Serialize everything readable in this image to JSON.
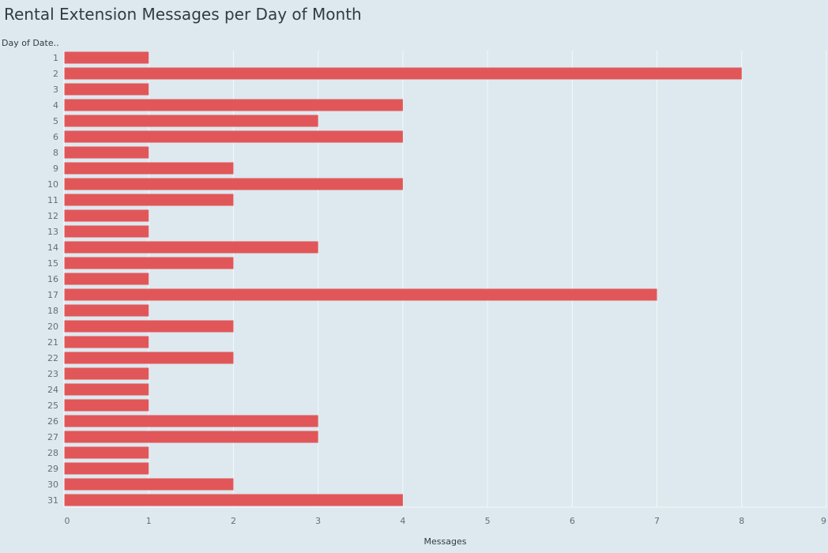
{
  "chart_data": {
    "type": "bar",
    "orientation": "horizontal",
    "title": "Rental Extension Messages per Day of Month",
    "ylabel": "Day of Date..",
    "xlabel": "Messages",
    "categories": [
      "1",
      "2",
      "3",
      "4",
      "5",
      "6",
      "8",
      "9",
      "10",
      "11",
      "12",
      "13",
      "14",
      "15",
      "16",
      "17",
      "18",
      "20",
      "21",
      "22",
      "23",
      "24",
      "25",
      "26",
      "27",
      "28",
      "29",
      "30",
      "31"
    ],
    "values": [
      1,
      8,
      1,
      4,
      3,
      4,
      1,
      2,
      4,
      2,
      1,
      1,
      3,
      2,
      1,
      7,
      1,
      2,
      1,
      2,
      1,
      1,
      1,
      3,
      3,
      1,
      1,
      2,
      4
    ],
    "xlim": [
      0,
      9
    ],
    "xticks": [
      "0",
      "1",
      "2",
      "3",
      "4",
      "5",
      "6",
      "7",
      "8",
      "9"
    ],
    "grid": "vertical",
    "colors": {
      "bar": "#e15759",
      "background": "#dde9ef",
      "grid": "#f4f8fa"
    }
  }
}
